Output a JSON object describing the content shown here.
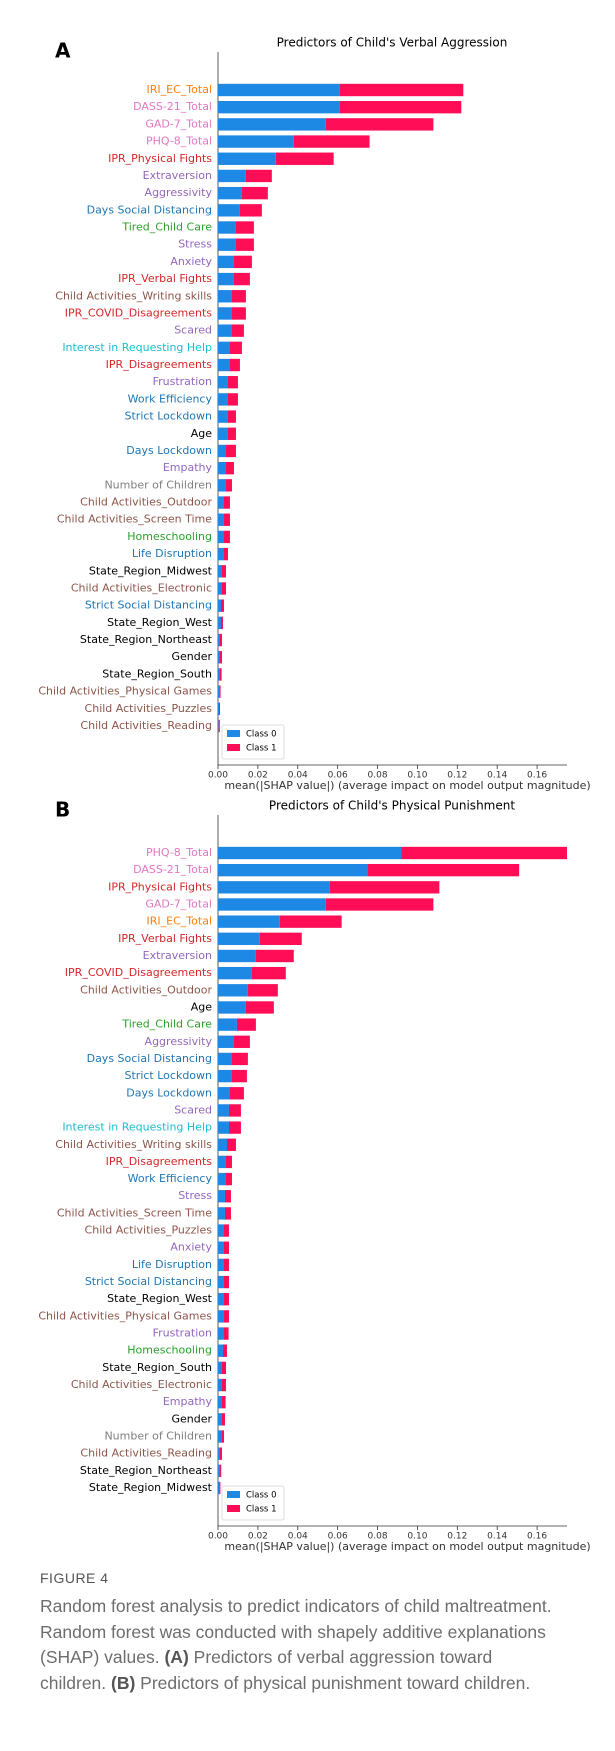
{
  "chart_data": [
    {
      "type": "stacked-barh",
      "panel": "A",
      "title": "Predictors of Child's Verbal Aggression",
      "xlabel": "mean(|SHAP value|) (average impact on model output magnitude)",
      "categories": [
        "IRI_EC_Total",
        "DASS-21_Total",
        "GAD-7_Total",
        "PHQ-8_Total",
        "IPR_Physical Fights",
        "Extraversion",
        "Aggressivity",
        "Days Social Distancing",
        "Tired_Child Care",
        "Stress",
        "Anxiety",
        "IPR_Verbal Fights",
        "Child Activities_Writing skills",
        "IPR_COVID_Disagreements",
        "Scared",
        "Interest in Requesting Help",
        "IPR_Disagreements",
        "Frustration",
        "Work Efficiency",
        "Strict Lockdown",
        "Age",
        "Days Lockdown",
        "Empathy",
        "Number of Children",
        "Child Activities_Outdoor",
        "Child Activities_Screen Time",
        "Homeschooling",
        "Life Disruption",
        "State_Region_Midwest",
        "Child Activities_Electronic",
        "Strict Social Distancing",
        "State_Region_West",
        "State_Region_Northeast",
        "Gender",
        "State_Region_South",
        "Child Activities_Physical Games",
        "Child Activities_Puzzles",
        "Child Activities_Reading"
      ],
      "category_colors": [
        "#ff7f0e",
        "#e377c2",
        "#e377c2",
        "#e377c2",
        "#d62728",
        "#9467bd",
        "#9467bd",
        "#1f77b4",
        "#2ca02c",
        "#9467bd",
        "#9467bd",
        "#d62728",
        "#8c564b",
        "#d62728",
        "#9467bd",
        "#17becf",
        "#d62728",
        "#9467bd",
        "#1f77b4",
        "#1f77b4",
        "#000000",
        "#1f77b4",
        "#9467bd",
        "#7f7f7f",
        "#8c564b",
        "#8c564b",
        "#2ca02c",
        "#1f77b4",
        "#000000",
        "#8c564b",
        "#1f77b4",
        "#000000",
        "#000000",
        "#000000",
        "#000000",
        "#8c564b",
        "#8c564b",
        "#8c564b"
      ],
      "series": [
        {
          "name": "Class 0",
          "color": "#1e88e5",
          "values": [
            0.061,
            0.061,
            0.054,
            0.038,
            0.029,
            0.014,
            0.012,
            0.011,
            0.009,
            0.009,
            0.008,
            0.008,
            0.007,
            0.007,
            0.007,
            0.006,
            0.006,
            0.005,
            0.005,
            0.005,
            0.005,
            0.004,
            0.004,
            0.004,
            0.003,
            0.003,
            0.003,
            0.003,
            0.002,
            0.002,
            0.0015,
            0.0015,
            0.001,
            0.001,
            0.001,
            0.0007,
            0.0005,
            0.0003
          ]
        },
        {
          "name": "Class 1",
          "color": "#ff0d57",
          "values": [
            0.062,
            0.061,
            0.054,
            0.038,
            0.029,
            0.013,
            0.013,
            0.011,
            0.009,
            0.009,
            0.009,
            0.008,
            0.007,
            0.007,
            0.006,
            0.006,
            0.005,
            0.005,
            0.005,
            0.004,
            0.004,
            0.005,
            0.004,
            0.003,
            0.003,
            0.003,
            0.003,
            0.002,
            0.002,
            0.002,
            0.0015,
            0.001,
            0.001,
            0.001,
            0.0008,
            0.0006,
            0.0005,
            0.0006
          ]
        }
      ],
      "xlim": [
        0,
        0.175
      ],
      "xticks": [
        {
          "value": 0,
          "label": "0.00"
        },
        0.02,
        0.04,
        0.06,
        0.08,
        {
          "value": 0.1,
          "label": "0.10"
        },
        0.12,
        0.14,
        0.16
      ],
      "legend": "lower left"
    },
    {
      "type": "stacked-barh",
      "panel": "B",
      "title": "Predictors of Child's Physical Punishment",
      "xlabel": "mean(|SHAP value|) (average impact on model output magnitude)",
      "categories": [
        "PHQ-8_Total",
        "DASS-21_Total",
        "IPR_Physical Fights",
        "GAD-7_Total",
        "IRI_EC_Total",
        "IPR_Verbal Fights",
        "Extraversion",
        "IPR_COVID_Disagreements",
        "Child Activities_Outdoor",
        "Age",
        "Tired_Child Care",
        "Aggressivity",
        "Days Social Distancing",
        "Strict Lockdown",
        "Days Lockdown",
        "Scared",
        "Interest in Requesting Help",
        "Child Activities_Writing skills",
        "IPR_Disagreements",
        "Work Efficiency",
        "Stress",
        "Child Activities_Screen Time",
        "Child Activities_Puzzles",
        "Anxiety",
        "Life Disruption",
        "Strict Social Distancing",
        "State_Region_West",
        "Child Activities_Physical Games",
        "Frustration",
        "Homeschooling",
        "State_Region_South",
        "Child Activities_Electronic",
        "Empathy",
        "Gender",
        "Number of Children",
        "Child Activities_Reading",
        "State_Region_Northeast",
        "State_Region_Midwest"
      ],
      "category_colors": [
        "#e377c2",
        "#e377c2",
        "#d62728",
        "#e377c2",
        "#ff7f0e",
        "#d62728",
        "#9467bd",
        "#d62728",
        "#8c564b",
        "#000000",
        "#2ca02c",
        "#9467bd",
        "#1f77b4",
        "#1f77b4",
        "#1f77b4",
        "#9467bd",
        "#17becf",
        "#8c564b",
        "#d62728",
        "#1f77b4",
        "#9467bd",
        "#8c564b",
        "#8c564b",
        "#9467bd",
        "#1f77b4",
        "#1f77b4",
        "#000000",
        "#8c564b",
        "#9467bd",
        "#2ca02c",
        "#000000",
        "#8c564b",
        "#9467bd",
        "#000000",
        "#7f7f7f",
        "#8c564b",
        "#000000",
        "#000000"
      ],
      "series": [
        {
          "name": "Class 0",
          "color": "#1e88e5",
          "values": [
            0.092,
            0.075,
            0.056,
            0.054,
            0.031,
            0.021,
            0.019,
            0.017,
            0.015,
            0.014,
            0.0095,
            0.008,
            0.007,
            0.007,
            0.006,
            0.0055,
            0.0055,
            0.0045,
            0.004,
            0.004,
            0.0035,
            0.0035,
            0.003,
            0.003,
            0.003,
            0.003,
            0.003,
            0.003,
            0.0028,
            0.0025,
            0.002,
            0.002,
            0.002,
            0.002,
            0.0018,
            0.001,
            0.0008,
            0.0007
          ]
        },
        {
          "name": "Class 1",
          "color": "#ff0d57",
          "values": [
            0.083,
            0.076,
            0.055,
            0.054,
            0.031,
            0.021,
            0.019,
            0.017,
            0.015,
            0.014,
            0.0095,
            0.008,
            0.008,
            0.0075,
            0.007,
            0.006,
            0.006,
            0.0045,
            0.003,
            0.003,
            0.003,
            0.003,
            0.0025,
            0.0025,
            0.0025,
            0.0025,
            0.0025,
            0.0025,
            0.0025,
            0.002,
            0.002,
            0.002,
            0.0018,
            0.0015,
            0.0012,
            0.001,
            0.0008,
            0.0005
          ]
        }
      ],
      "xlim": [
        0,
        0.175
      ],
      "xticks": [
        {
          "value": 0,
          "label": "0.00"
        },
        0.02,
        0.04,
        0.06,
        0.08,
        {
          "value": 0.1,
          "label": "0.10"
        },
        0.12,
        0.14,
        0.16
      ],
      "legend": "lower left"
    }
  ],
  "caption": {
    "label": "FIGURE 4",
    "text": [
      "Random forest analysis to predict indicators of child maltreatment. Random forest was conducted with shapely additive explanations (SHAP) values. ",
      "(A)",
      " Predictors of verbal aggression toward children. ",
      "(B)",
      " Predictors of physical punishment toward children."
    ]
  }
}
